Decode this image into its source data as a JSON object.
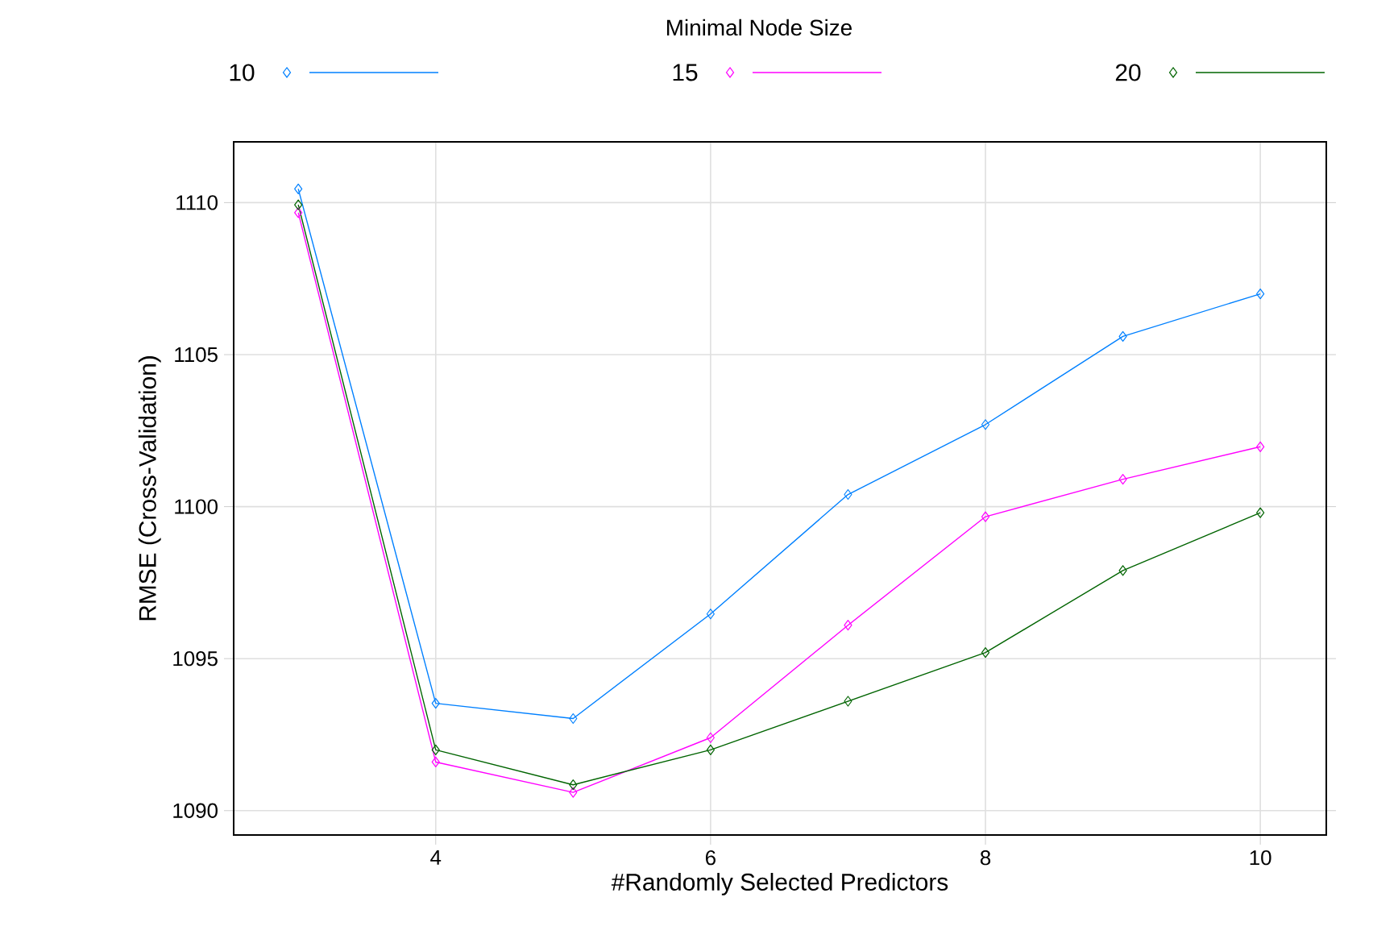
{
  "chart_data": {
    "type": "line",
    "xlabel": "#Randomly Selected Predictors",
    "ylabel": "RMSE (Cross-Validation)",
    "legend_title": "Minimal Node Size",
    "x": [
      3,
      4,
      5,
      6,
      7,
      8,
      9,
      10
    ],
    "series": [
      {
        "name": "10",
        "color": "#0080ff",
        "values": [
          1110.45,
          1093.53,
          1093.03,
          1096.47,
          1100.4,
          1102.7,
          1105.6,
          1107.0
        ]
      },
      {
        "name": "15",
        "color": "#ff00ff",
        "values": [
          1109.67,
          1091.6,
          1090.6,
          1092.4,
          1096.1,
          1099.67,
          1100.9,
          1101.97
        ]
      },
      {
        "name": "20",
        "color": "#006400",
        "values": [
          1109.93,
          1092.0,
          1090.85,
          1092.0,
          1093.6,
          1095.2,
          1097.9,
          1099.8
        ]
      }
    ],
    "xlim": [
      2.53,
      10.48
    ],
    "ylim": [
      1089.2,
      1112.0
    ],
    "xticks": [
      4,
      6,
      8,
      10
    ],
    "yticks": [
      1090,
      1095,
      1100,
      1105,
      1110
    ],
    "grid": true,
    "legend": "top",
    "marker": "diamond",
    "line_style": "solid"
  }
}
